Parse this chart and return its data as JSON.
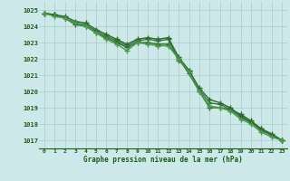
{
  "x": [
    0,
    1,
    2,
    3,
    4,
    5,
    6,
    7,
    8,
    9,
    10,
    11,
    12,
    13,
    14,
    15,
    16,
    17,
    18,
    19,
    20,
    21,
    22,
    23
  ],
  "line1": [
    1024.8,
    1024.7,
    1024.5,
    1024.1,
    1024.0,
    1023.6,
    1023.3,
    1023.0,
    1022.7,
    1023.0,
    1023.0,
    1022.9,
    1022.9,
    1022.0,
    1021.1,
    1020.0,
    1019.0,
    1019.0,
    1018.9,
    1018.6,
    1018.2,
    1017.7,
    1017.3,
    1017.0
  ],
  "line2": [
    1024.8,
    1024.7,
    1024.5,
    1024.2,
    1024.1,
    1023.7,
    1023.4,
    1023.1,
    1022.8,
    1023.1,
    1023.2,
    1023.1,
    1023.2,
    1021.9,
    1021.3,
    1020.1,
    1019.3,
    1019.2,
    1018.9,
    1018.4,
    1018.1,
    1017.6,
    1017.3,
    1017.0
  ],
  "line3": [
    1024.8,
    1024.7,
    1024.6,
    1024.3,
    1024.2,
    1023.8,
    1023.5,
    1023.2,
    1022.9,
    1023.2,
    1023.3,
    1023.2,
    1023.3,
    1022.1,
    1021.3,
    1020.2,
    1019.5,
    1019.3,
    1019.0,
    1018.5,
    1018.1,
    1017.7,
    1017.4,
    1017.0
  ],
  "line4": [
    1024.8,
    1024.6,
    1024.5,
    1024.2,
    1024.0,
    1023.6,
    1023.2,
    1022.9,
    1022.5,
    1023.0,
    1022.9,
    1022.8,
    1022.8,
    1022.0,
    1021.2,
    1020.0,
    1019.1,
    1019.0,
    1018.8,
    1018.3,
    1018.0,
    1017.5,
    1017.2,
    1017.0
  ],
  "line_colors": [
    "#2d6a2d",
    "#3a7a3a",
    "#2d6a2d",
    "#4a9a4a"
  ],
  "background_color": "#cce8e8",
  "grid_color": "#aacccc",
  "text_color": "#1a5c1a",
  "xlabel": "Graphe pression niveau de la mer (hPa)",
  "ylim": [
    1016.5,
    1025.5
  ],
  "xlim": [
    -0.5,
    23.5
  ],
  "yticks": [
    1017,
    1018,
    1019,
    1020,
    1021,
    1022,
    1023,
    1024,
    1025
  ],
  "xticks": [
    0,
    1,
    2,
    3,
    4,
    5,
    6,
    7,
    8,
    9,
    10,
    11,
    12,
    13,
    14,
    15,
    16,
    17,
    18,
    19,
    20,
    21,
    22,
    23
  ],
  "marker": "+",
  "markersize": 4,
  "linewidth": 1.0
}
